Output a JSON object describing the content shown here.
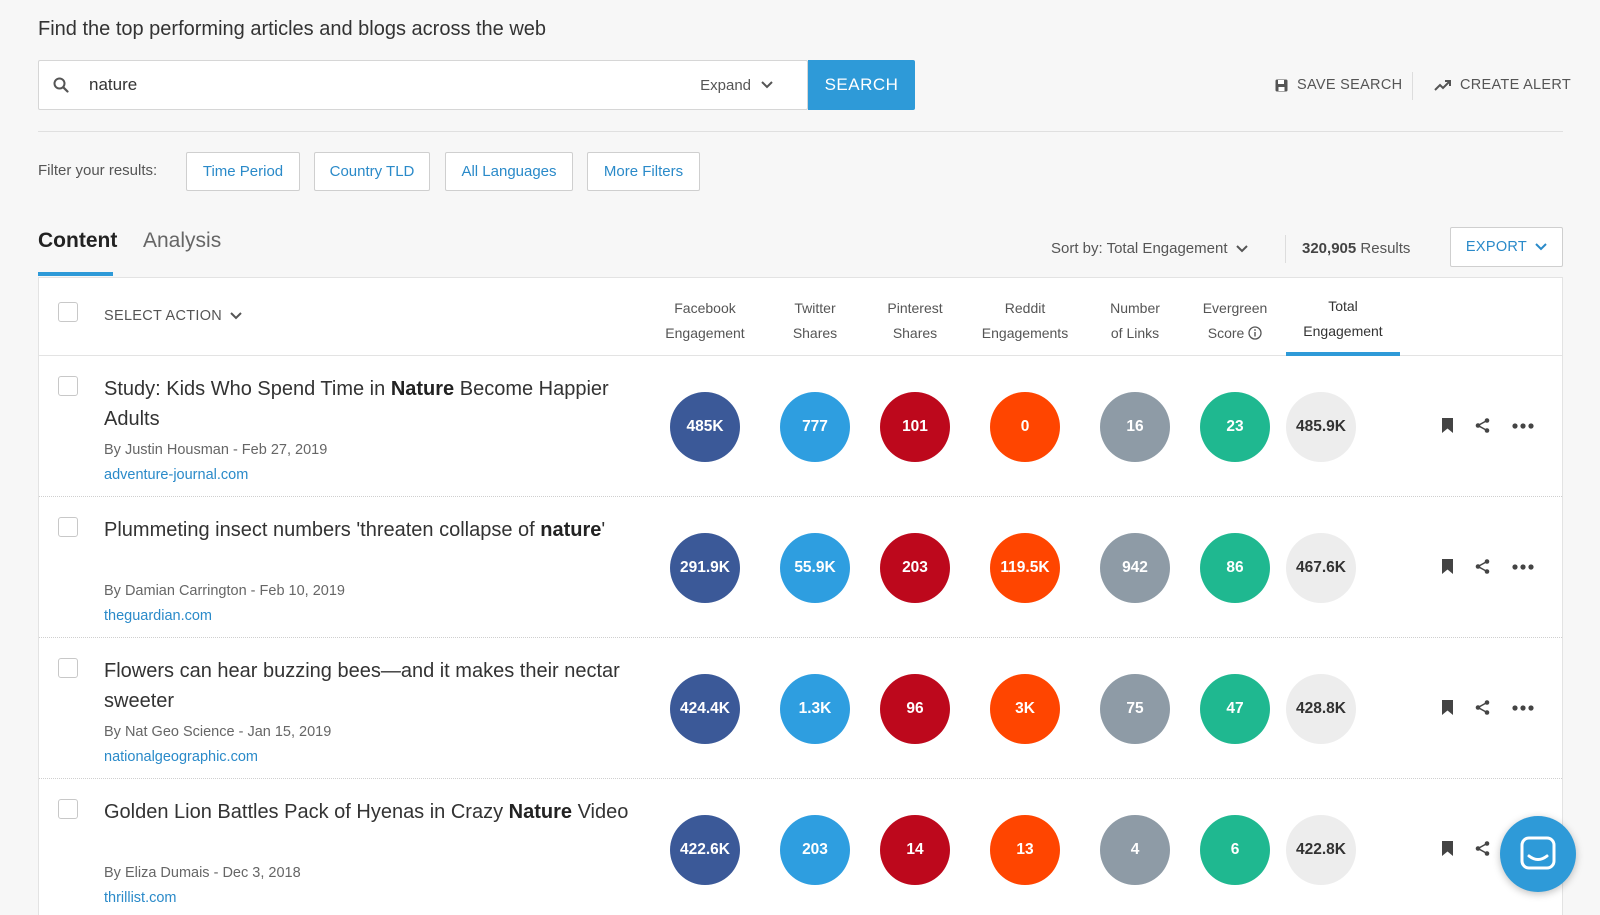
{
  "headline": "Find the top performing articles and blogs across the web",
  "search": {
    "value": "nature",
    "expand_label": "Expand",
    "button_label": "SEARCH"
  },
  "actions": {
    "save_search": "SAVE SEARCH",
    "create_alert": "CREATE ALERT"
  },
  "filters": {
    "label": "Filter your results:",
    "buttons": [
      "Time Period",
      "Country TLD",
      "All Languages",
      "More Filters"
    ]
  },
  "tabs": [
    {
      "label": "Content",
      "active": true
    },
    {
      "label": "Analysis",
      "active": false
    }
  ],
  "sort": {
    "label": "Sort by: Total Engagement"
  },
  "results": {
    "count": "320,905",
    "label": "Results"
  },
  "export_label": "EXPORT",
  "table": {
    "select_action": "SELECT ACTION",
    "columns": [
      {
        "line1": "Facebook",
        "line2": "Engagement",
        "color": "#3b5998"
      },
      {
        "line1": "Twitter",
        "line2": "Shares",
        "color": "#2e9ee0"
      },
      {
        "line1": "Pinterest",
        "line2": "Shares",
        "color": "#bd081c"
      },
      {
        "line1": "Reddit",
        "line2": "Engagements",
        "color": "#ff4500"
      },
      {
        "line1": "Number",
        "line2": "of Links",
        "color": "#8e9ba6"
      },
      {
        "line1": "Evergreen",
        "line2": "Score",
        "color": "#1fb890"
      },
      {
        "line1": "Total",
        "line2": "Engagement",
        "color": "#ededed"
      }
    ],
    "rows": [
      {
        "title_parts": [
          {
            "t": "Study: Kids Who Spend Time in ",
            "b": false
          },
          {
            "t": "Nature",
            "b": true
          },
          {
            "t": " Become Happier Adults",
            "b": false
          }
        ],
        "meta": "By Justin Housman - Feb 27, 2019",
        "domain": "adventure-journal.com",
        "values": [
          "485K",
          "777",
          "101",
          "0",
          "16",
          "23",
          "485.9K"
        ]
      },
      {
        "title_parts": [
          {
            "t": "Plummeting insect numbers 'threaten collapse of ",
            "b": false
          },
          {
            "t": "nature",
            "b": true
          },
          {
            "t": "'",
            "b": false
          }
        ],
        "meta": "By Damian Carrington - Feb 10, 2019",
        "domain": "theguardian.com",
        "values": [
          "291.9K",
          "55.9K",
          "203",
          "119.5K",
          "942",
          "86",
          "467.6K"
        ]
      },
      {
        "title_parts": [
          {
            "t": "Flowers can hear buzzing bees—and it makes their nectar sweeter",
            "b": false
          }
        ],
        "meta": "By Nat Geo Science - Jan 15, 2019",
        "domain": "nationalgeographic.com",
        "values": [
          "424.4K",
          "1.3K",
          "96",
          "3K",
          "75",
          "47",
          "428.8K"
        ]
      },
      {
        "title_parts": [
          {
            "t": "Golden Lion Battles Pack of Hyenas in Crazy ",
            "b": false
          },
          {
            "t": "Nature",
            "b": true
          },
          {
            "t": " Video",
            "b": false
          }
        ],
        "meta": "By Eliza Dumais - Dec 3, 2018",
        "domain": "thrillist.com",
        "values": [
          "422.6K",
          "203",
          "14",
          "13",
          "4",
          "6",
          "422.8K"
        ]
      }
    ]
  }
}
